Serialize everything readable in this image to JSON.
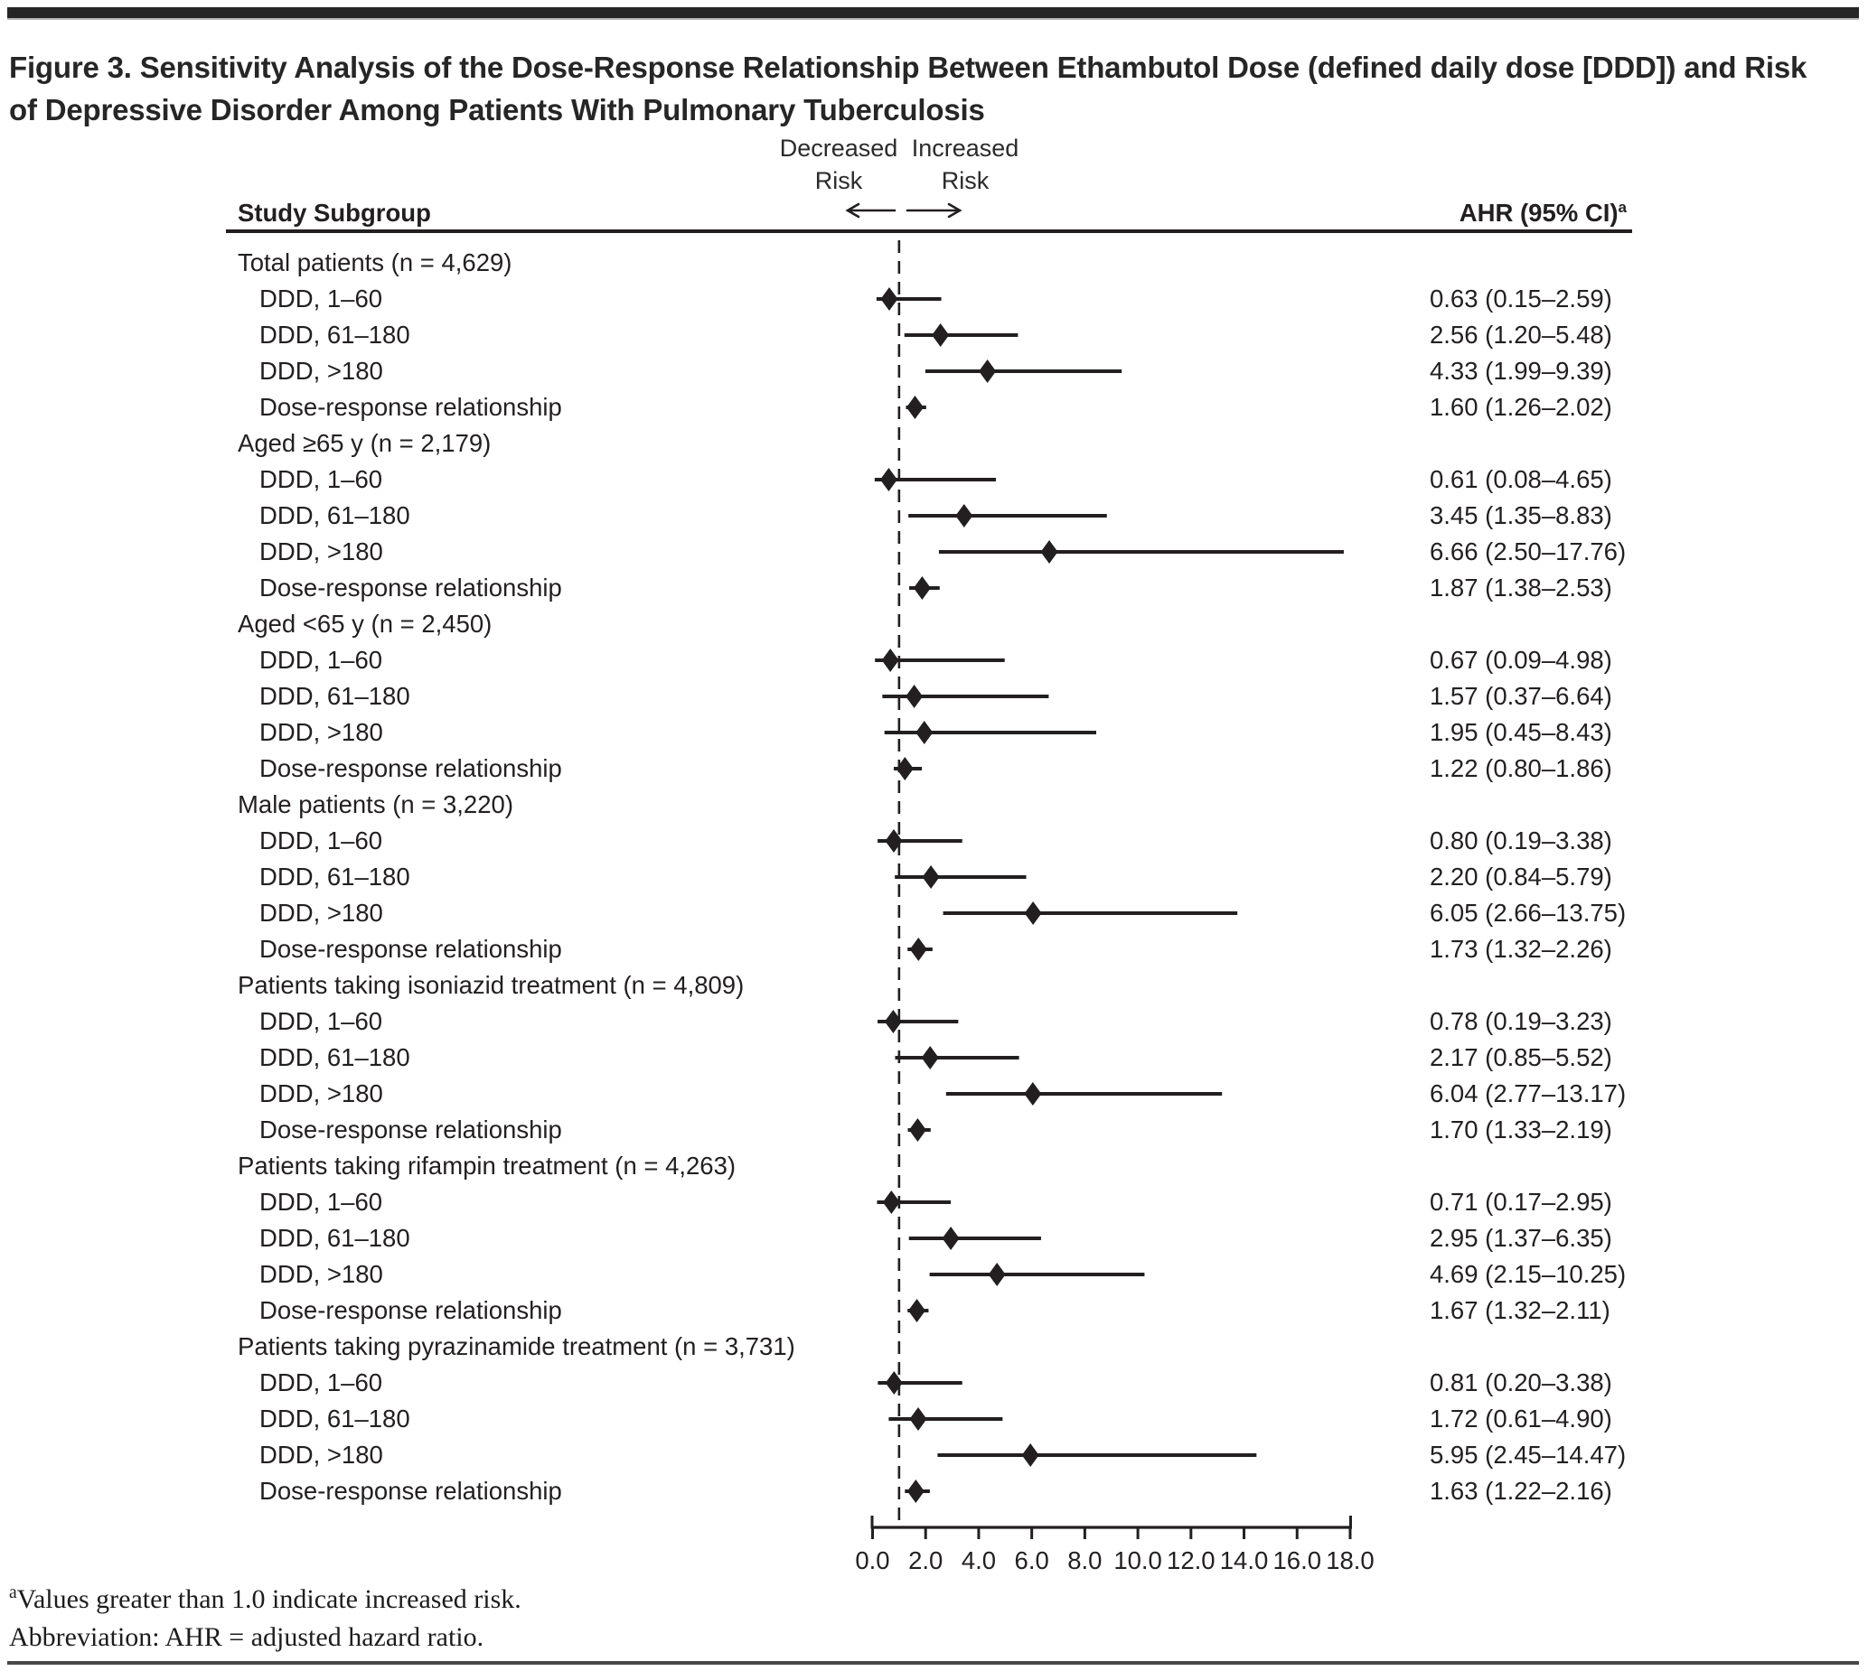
{
  "figure": {
    "title": "Figure 3. Sensitivity Analysis of the Dose-Response Relationship Between Ethambutol Dose (defined daily dose [DDD]) and Risk of Depressive Disorder Among Patients With Pulmonary Tuberculosis",
    "column_headers": {
      "subgroup": "Study Subgroup",
      "ahr": "AHR (95% CI)",
      "ahr_superscript": "a",
      "direction_left_line1": "Decreased",
      "direction_left_line2": "Risk",
      "direction_right_line1": "Increased",
      "direction_right_line2": "Risk"
    },
    "footnotes": {
      "note_superscript": "a",
      "note_text": "Values greater than 1.0 indicate increased risk.",
      "abbreviation": "Abbreviation: AHR = adjusted hazard ratio."
    },
    "colors": {
      "ink": "#231f20",
      "top_bar": "#262626"
    }
  },
  "chart_data": {
    "type": "scatter",
    "subtype": "forest-plot",
    "title": "Sensitivity analysis of dose-response relationship (ethambutol DDD vs depressive disorder risk)",
    "xlabel": "AHR (adjusted hazard ratio)",
    "x_range": [
      0,
      18
    ],
    "reference_line": 1.0,
    "grid": false,
    "x_ticks": [
      "0.0",
      "2.0",
      "4.0",
      "6.0",
      "8.0",
      "10.0",
      "12.0",
      "14.0",
      "16.0",
      "18.0"
    ],
    "x_tick_values": [
      0,
      2,
      4,
      6,
      8,
      10,
      12,
      14,
      16,
      18
    ],
    "sections": [
      {
        "label": "Total patients (n = 4,629)",
        "rows": [
          {
            "label": "DDD, 1–60",
            "ahr": 0.63,
            "ci_low": 0.15,
            "ci_high": 2.59,
            "text": "0.63 (0.15–2.59)"
          },
          {
            "label": "DDD, 61–180",
            "ahr": 2.56,
            "ci_low": 1.2,
            "ci_high": 5.48,
            "text": "2.56 (1.20–5.48)"
          },
          {
            "label": "DDD, >180",
            "ahr": 4.33,
            "ci_low": 1.99,
            "ci_high": 9.39,
            "text": "4.33 (1.99–9.39)"
          },
          {
            "label": "Dose-response relationship",
            "ahr": 1.6,
            "ci_low": 1.26,
            "ci_high": 2.02,
            "text": "1.60 (1.26–2.02)"
          }
        ]
      },
      {
        "label": "Aged ≥65 y (n = 2,179)",
        "rows": [
          {
            "label": "DDD, 1–60",
            "ahr": 0.61,
            "ci_low": 0.08,
            "ci_high": 4.65,
            "text": "0.61 (0.08–4.65)"
          },
          {
            "label": "DDD, 61–180",
            "ahr": 3.45,
            "ci_low": 1.35,
            "ci_high": 8.83,
            "text": "3.45 (1.35–8.83)"
          },
          {
            "label": "DDD, >180",
            "ahr": 6.66,
            "ci_low": 2.5,
            "ci_high": 17.76,
            "text": "6.66 (2.50–17.76)"
          },
          {
            "label": "Dose-response relationship",
            "ahr": 1.87,
            "ci_low": 1.38,
            "ci_high": 2.53,
            "text": "1.87 (1.38–2.53)"
          }
        ]
      },
      {
        "label": "Aged <65 y (n = 2,450)",
        "rows": [
          {
            "label": "DDD, 1–60",
            "ahr": 0.67,
            "ci_low": 0.09,
            "ci_high": 4.98,
            "text": "0.67 (0.09–4.98)"
          },
          {
            "label": "DDD, 61–180",
            "ahr": 1.57,
            "ci_low": 0.37,
            "ci_high": 6.64,
            "text": "1.57 (0.37–6.64)"
          },
          {
            "label": "DDD, >180",
            "ahr": 1.95,
            "ci_low": 0.45,
            "ci_high": 8.43,
            "text": "1.95 (0.45–8.43)"
          },
          {
            "label": "Dose-response relationship",
            "ahr": 1.22,
            "ci_low": 0.8,
            "ci_high": 1.86,
            "text": "1.22 (0.80–1.86)"
          }
        ]
      },
      {
        "label": "Male patients (n = 3,220)",
        "rows": [
          {
            "label": "DDD, 1–60",
            "ahr": 0.8,
            "ci_low": 0.19,
            "ci_high": 3.38,
            "text": "0.80 (0.19–3.38)"
          },
          {
            "label": "DDD, 61–180",
            "ahr": 2.2,
            "ci_low": 0.84,
            "ci_high": 5.79,
            "text": "2.20 (0.84–5.79)"
          },
          {
            "label": "DDD, >180",
            "ahr": 6.05,
            "ci_low": 2.66,
            "ci_high": 13.75,
            "text": "6.05 (2.66–13.75)"
          },
          {
            "label": "Dose-response relationship",
            "ahr": 1.73,
            "ci_low": 1.32,
            "ci_high": 2.26,
            "text": "1.73 (1.32–2.26)"
          }
        ]
      },
      {
        "label": "Patients taking isoniazid treatment (n = 4,809)",
        "rows": [
          {
            "label": "DDD, 1–60",
            "ahr": 0.78,
            "ci_low": 0.19,
            "ci_high": 3.23,
            "text": "0.78 (0.19–3.23)"
          },
          {
            "label": "DDD, 61–180",
            "ahr": 2.17,
            "ci_low": 0.85,
            "ci_high": 5.52,
            "text": "2.17 (0.85–5.52)"
          },
          {
            "label": "DDD, >180",
            "ahr": 6.04,
            "ci_low": 2.77,
            "ci_high": 13.17,
            "text": "6.04 (2.77–13.17)"
          },
          {
            "label": "Dose-response relationship",
            "ahr": 1.7,
            "ci_low": 1.33,
            "ci_high": 2.19,
            "text": "1.70 (1.33–2.19)"
          }
        ]
      },
      {
        "label": "Patients taking rifampin treatment (n = 4,263)",
        "rows": [
          {
            "label": "DDD, 1–60",
            "ahr": 0.71,
            "ci_low": 0.17,
            "ci_high": 2.95,
            "text": "0.71 (0.17–2.95)"
          },
          {
            "label": "DDD, 61–180",
            "ahr": 2.95,
            "ci_low": 1.37,
            "ci_high": 6.35,
            "text": "2.95 (1.37–6.35)"
          },
          {
            "label": "DDD, >180",
            "ahr": 4.69,
            "ci_low": 2.15,
            "ci_high": 10.25,
            "text": "4.69 (2.15–10.25)"
          },
          {
            "label": "Dose-response relationship",
            "ahr": 1.67,
            "ci_low": 1.32,
            "ci_high": 2.11,
            "text": "1.67 (1.32–2.11)"
          }
        ]
      },
      {
        "label": "Patients taking pyrazinamide treatment (n = 3,731)",
        "rows": [
          {
            "label": "DDD, 1–60",
            "ahr": 0.81,
            "ci_low": 0.2,
            "ci_high": 3.38,
            "text": "0.81 (0.20–3.38)"
          },
          {
            "label": "DDD, 61–180",
            "ahr": 1.72,
            "ci_low": 0.61,
            "ci_high": 4.9,
            "text": "1.72 (0.61–4.90)"
          },
          {
            "label": "DDD, >180",
            "ahr": 5.95,
            "ci_low": 2.45,
            "ci_high": 14.47,
            "text": "5.95 (2.45–14.47)"
          },
          {
            "label": "Dose-response relationship",
            "ahr": 1.63,
            "ci_low": 1.22,
            "ci_high": 2.16,
            "text": "1.63 (1.22–2.16)"
          }
        ]
      }
    ]
  }
}
